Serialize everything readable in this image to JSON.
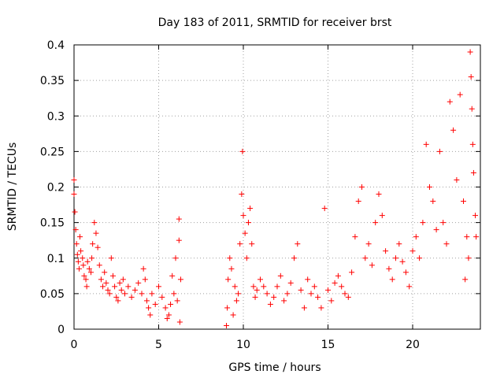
{
  "chart_data": {
    "type": "scatter",
    "title": "Day 183 of 2011, SRMTID for receiver brst",
    "xlabel": "GPS time / hours",
    "ylabel": "SRMTID / TECUs",
    "xlim": [
      0,
      24
    ],
    "ylim": [
      0,
      0.4
    ],
    "xticks": [
      0,
      5,
      10,
      15,
      20
    ],
    "yticks": [
      0,
      0.05,
      0.1,
      0.15,
      0.2,
      0.25,
      0.3,
      0.35,
      0.4
    ],
    "ytick_labels": [
      "0",
      "0.05",
      "0.1",
      "0.15",
      "0.2",
      "0.25",
      "0.3",
      "0.35",
      "0.4"
    ],
    "grid": true,
    "marker": "+",
    "color": "#ff0000",
    "series": [
      {
        "name": "SRMTID",
        "points": [
          [
            0.0,
            0.21
          ],
          [
            0.0,
            0.19
          ],
          [
            0.05,
            0.165
          ],
          [
            0.1,
            0.14
          ],
          [
            0.15,
            0.12
          ],
          [
            0.2,
            0.105
          ],
          [
            0.25,
            0.095
          ],
          [
            0.3,
            0.085
          ],
          [
            0.35,
            0.13
          ],
          [
            0.4,
            0.11
          ],
          [
            0.5,
            0.1
          ],
          [
            0.55,
            0.09
          ],
          [
            0.6,
            0.075
          ],
          [
            0.7,
            0.07
          ],
          [
            0.75,
            0.06
          ],
          [
            0.8,
            0.095
          ],
          [
            0.9,
            0.085
          ],
          [
            1.0,
            0.08
          ],
          [
            1.05,
            0.1
          ],
          [
            1.1,
            0.12
          ],
          [
            1.2,
            0.15
          ],
          [
            1.3,
            0.135
          ],
          [
            1.4,
            0.115
          ],
          [
            1.5,
            0.09
          ],
          [
            1.6,
            0.07
          ],
          [
            1.7,
            0.06
          ],
          [
            1.8,
            0.08
          ],
          [
            1.9,
            0.065
          ],
          [
            2.0,
            0.055
          ],
          [
            2.1,
            0.05
          ],
          [
            2.2,
            0.1
          ],
          [
            2.3,
            0.075
          ],
          [
            2.4,
            0.06
          ],
          [
            2.5,
            0.045
          ],
          [
            2.6,
            0.04
          ],
          [
            2.7,
            0.065
          ],
          [
            2.8,
            0.055
          ],
          [
            2.9,
            0.07
          ],
          [
            3.0,
            0.05
          ],
          [
            3.2,
            0.06
          ],
          [
            3.4,
            0.045
          ],
          [
            3.6,
            0.055
          ],
          [
            3.8,
            0.065
          ],
          [
            4.0,
            0.05
          ],
          [
            4.1,
            0.085
          ],
          [
            4.2,
            0.07
          ],
          [
            4.3,
            0.04
          ],
          [
            4.4,
            0.03
          ],
          [
            4.5,
            0.02
          ],
          [
            4.6,
            0.05
          ],
          [
            4.8,
            0.035
          ],
          [
            5.0,
            0.06
          ],
          [
            5.2,
            0.045
          ],
          [
            5.4,
            0.03
          ],
          [
            5.5,
            0.015
          ],
          [
            5.6,
            0.02
          ],
          [
            5.7,
            0.035
          ],
          [
            5.8,
            0.075
          ],
          [
            5.9,
            0.05
          ],
          [
            6.0,
            0.1
          ],
          [
            6.1,
            0.04
          ],
          [
            6.2,
            0.155
          ],
          [
            6.2,
            0.125
          ],
          [
            6.25,
            0.01
          ],
          [
            6.3,
            0.07
          ],
          [
            9.0,
            0.005
          ],
          [
            9.05,
            0.03
          ],
          [
            9.1,
            0.07
          ],
          [
            9.2,
            0.1
          ],
          [
            9.3,
            0.085
          ],
          [
            9.4,
            0.02
          ],
          [
            9.5,
            0.06
          ],
          [
            9.6,
            0.04
          ],
          [
            9.7,
            0.05
          ],
          [
            9.8,
            0.12
          ],
          [
            9.9,
            0.19
          ],
          [
            9.95,
            0.25
          ],
          [
            10.0,
            0.16
          ],
          [
            10.1,
            0.135
          ],
          [
            10.2,
            0.1
          ],
          [
            10.3,
            0.15
          ],
          [
            10.4,
            0.17
          ],
          [
            10.5,
            0.12
          ],
          [
            10.6,
            0.06
          ],
          [
            10.7,
            0.045
          ],
          [
            10.8,
            0.055
          ],
          [
            11.0,
            0.07
          ],
          [
            11.2,
            0.06
          ],
          [
            11.4,
            0.05
          ],
          [
            11.6,
            0.035
          ],
          [
            11.8,
            0.045
          ],
          [
            12.0,
            0.06
          ],
          [
            12.2,
            0.075
          ],
          [
            12.4,
            0.04
          ],
          [
            12.6,
            0.05
          ],
          [
            12.8,
            0.065
          ],
          [
            13.0,
            0.1
          ],
          [
            13.2,
            0.12
          ],
          [
            13.4,
            0.055
          ],
          [
            13.6,
            0.03
          ],
          [
            13.8,
            0.07
          ],
          [
            14.0,
            0.05
          ],
          [
            14.2,
            0.06
          ],
          [
            14.4,
            0.045
          ],
          [
            14.6,
            0.03
          ],
          [
            14.8,
            0.17
          ],
          [
            15.0,
            0.055
          ],
          [
            15.2,
            0.04
          ],
          [
            15.4,
            0.065
          ],
          [
            15.6,
            0.075
          ],
          [
            15.8,
            0.06
          ],
          [
            16.0,
            0.05
          ],
          [
            16.2,
            0.045
          ],
          [
            16.4,
            0.08
          ],
          [
            16.6,
            0.13
          ],
          [
            16.8,
            0.18
          ],
          [
            17.0,
            0.2
          ],
          [
            17.2,
            0.1
          ],
          [
            17.4,
            0.12
          ],
          [
            17.6,
            0.09
          ],
          [
            17.8,
            0.15
          ],
          [
            18.0,
            0.19
          ],
          [
            18.2,
            0.16
          ],
          [
            18.4,
            0.11
          ],
          [
            18.6,
            0.085
          ],
          [
            18.8,
            0.07
          ],
          [
            19.0,
            0.1
          ],
          [
            19.2,
            0.12
          ],
          [
            19.4,
            0.095
          ],
          [
            19.6,
            0.08
          ],
          [
            19.8,
            0.06
          ],
          [
            20.0,
            0.11
          ],
          [
            20.2,
            0.13
          ],
          [
            20.4,
            0.1
          ],
          [
            20.6,
            0.15
          ],
          [
            20.8,
            0.26
          ],
          [
            21.0,
            0.2
          ],
          [
            21.2,
            0.18
          ],
          [
            21.4,
            0.14
          ],
          [
            21.6,
            0.25
          ],
          [
            21.8,
            0.15
          ],
          [
            22.0,
            0.12
          ],
          [
            22.2,
            0.32
          ],
          [
            22.4,
            0.28
          ],
          [
            22.6,
            0.21
          ],
          [
            22.8,
            0.33
          ],
          [
            23.0,
            0.18
          ],
          [
            23.1,
            0.07
          ],
          [
            23.2,
            0.13
          ],
          [
            23.3,
            0.1
          ],
          [
            23.4,
            0.39
          ],
          [
            23.45,
            0.355
          ],
          [
            23.5,
            0.31
          ],
          [
            23.55,
            0.26
          ],
          [
            23.6,
            0.22
          ],
          [
            23.7,
            0.16
          ],
          [
            23.75,
            0.13
          ]
        ]
      }
    ]
  }
}
